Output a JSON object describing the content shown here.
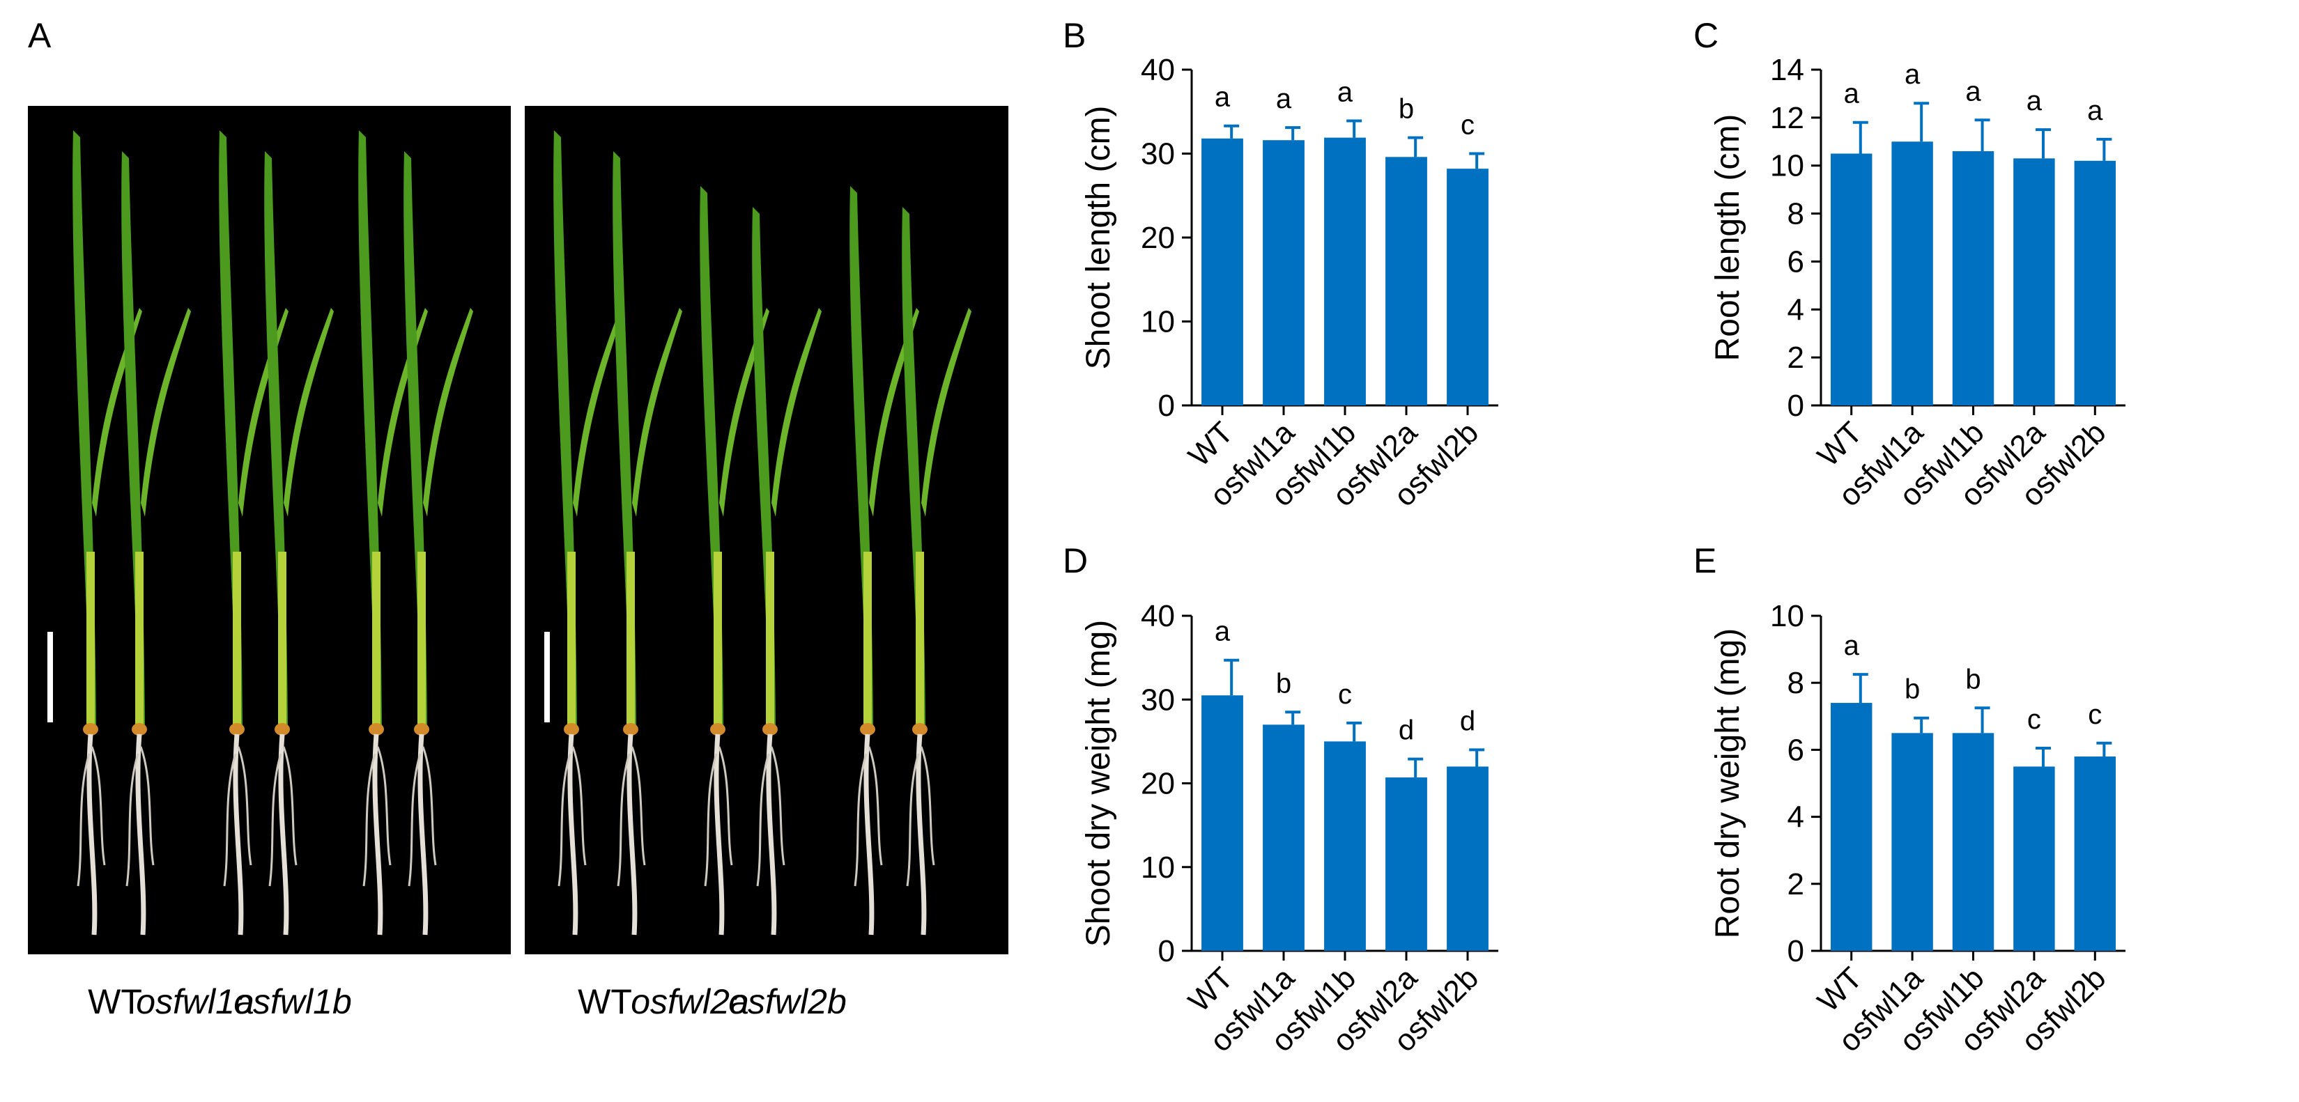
{
  "panel_a": {
    "letter": "A",
    "photos": [
      {
        "labels": [
          "WT",
          "osfwl1a",
          "osfwl1b"
        ],
        "italic": [
          false,
          true,
          true
        ]
      },
      {
        "labels": [
          "WT",
          "osfwl2a",
          "osfwl2b"
        ],
        "italic": [
          false,
          true,
          true
        ]
      }
    ]
  },
  "chart_data": [
    {
      "panel": "B",
      "type": "bar",
      "categories": [
        "WT",
        "osfwl1a",
        "osfwl1b",
        "osfwl2a",
        "osfwl2b"
      ],
      "values": [
        31.8,
        31.6,
        31.9,
        29.6,
        28.2
      ],
      "errors": [
        1.5,
        1.5,
        2.0,
        2.3,
        1.8
      ],
      "labels": [
        "a",
        "a",
        "a",
        "b",
        "c"
      ],
      "ylabel": "Shoot length (cm)",
      "ylim": [
        0,
        40
      ],
      "ticks": [
        0,
        10,
        20,
        30,
        40
      ],
      "color": "#0070C0"
    },
    {
      "panel": "C",
      "type": "bar",
      "categories": [
        "WT",
        "osfwl1a",
        "osfwl1b",
        "osfwl2a",
        "osfwl2b"
      ],
      "values": [
        10.5,
        11.0,
        10.6,
        10.3,
        10.2
      ],
      "errors": [
        1.3,
        1.6,
        1.3,
        1.2,
        0.9
      ],
      "labels": [
        "a",
        "a",
        "a",
        "a",
        "a"
      ],
      "ylabel": "Root length (cm)",
      "ylim": [
        0,
        14
      ],
      "ticks": [
        0,
        2,
        4,
        6,
        8,
        10,
        12,
        14
      ],
      "color": "#0070C0"
    },
    {
      "panel": "D",
      "type": "bar",
      "categories": [
        "WT",
        "osfwl1a",
        "osfwl1b",
        "osfwl2a",
        "osfwl2b"
      ],
      "values": [
        30.5,
        27.0,
        25.0,
        20.7,
        22.0
      ],
      "errors": [
        4.2,
        1.5,
        2.2,
        2.2,
        2.0
      ],
      "labels": [
        "a",
        "b",
        "c",
        "d",
        "d"
      ],
      "ylabel": "Shoot dry weight (mg)",
      "ylim": [
        0,
        40
      ],
      "ticks": [
        0,
        10,
        20,
        30,
        40
      ],
      "color": "#0070C0"
    },
    {
      "panel": "E",
      "type": "bar",
      "categories": [
        "WT",
        "osfwl1a",
        "osfwl1b",
        "osfwl2a",
        "osfwl2b"
      ],
      "values": [
        7.4,
        6.5,
        6.5,
        5.5,
        5.8
      ],
      "errors": [
        0.85,
        0.45,
        0.75,
        0.55,
        0.4
      ],
      "labels": [
        "a",
        "b",
        "b",
        "c",
        "c"
      ],
      "ylabel": "Root dry weight (mg)",
      "ylim": [
        0,
        10
      ],
      "ticks": [
        0,
        2,
        4,
        6,
        8,
        10
      ],
      "color": "#0070C0"
    }
  ]
}
